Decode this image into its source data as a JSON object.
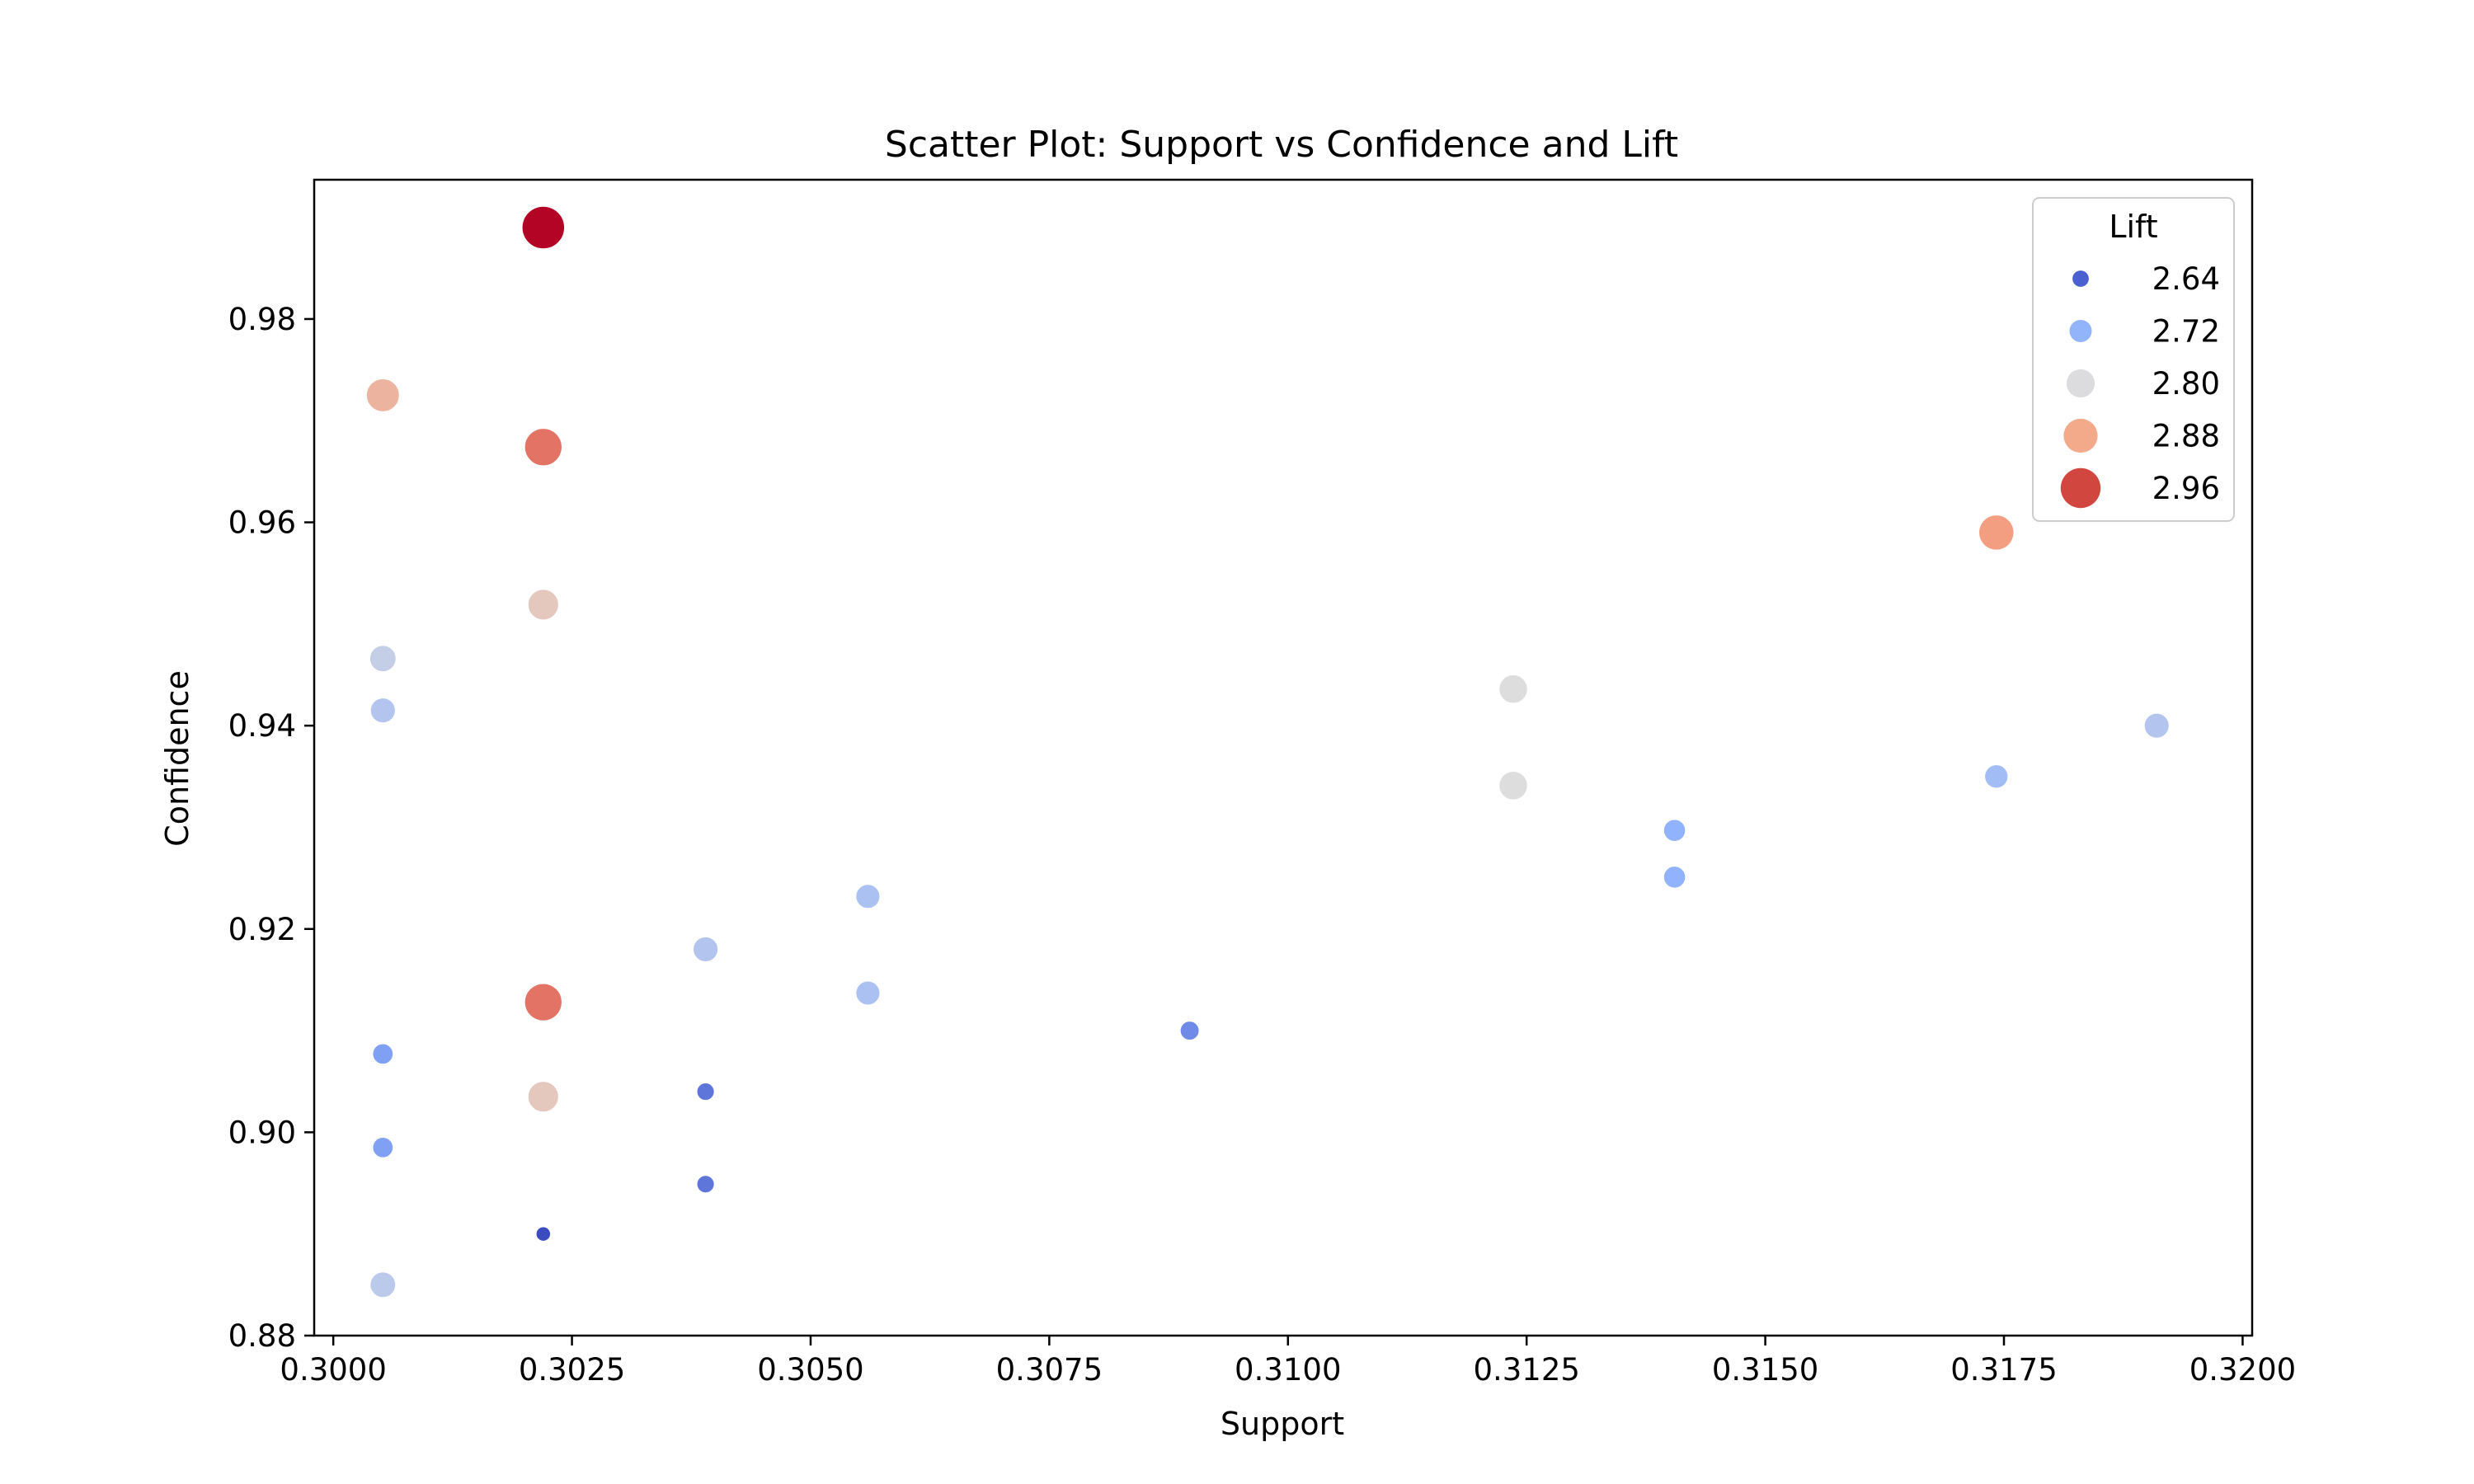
{
  "chart_data": {
    "type": "scatter",
    "title": "Scatter Plot: Support vs Confidence and Lift",
    "xlabel": "Support",
    "ylabel": "Confidence",
    "xlim": [
      0.2998,
      0.3201
    ],
    "ylim": [
      0.88,
      0.9937
    ],
    "x_ticks": [
      "0.3000",
      "0.3025",
      "0.3050",
      "0.3075",
      "0.3100",
      "0.3125",
      "0.3150",
      "0.3175",
      "0.3200"
    ],
    "y_ticks": [
      "0.88",
      "0.90",
      "0.92",
      "0.94",
      "0.96",
      "0.98"
    ],
    "grid": false,
    "hue_and_size": "Lift",
    "color_map": "coolwarm",
    "legend": {
      "title": "Lift",
      "position": "top-right",
      "entries": [
        {
          "label": "2.64",
          "lift": 2.64,
          "color": "#4a5fd0"
        },
        {
          "label": "2.72",
          "lift": 2.72,
          "color": "#92b4fb"
        },
        {
          "label": "2.80",
          "lift": 2.8,
          "color": "#dcdcde"
        },
        {
          "label": "2.88",
          "lift": 2.88,
          "color": "#f3aa8a"
        },
        {
          "label": "2.96",
          "lift": 2.96,
          "color": "#d1463f"
        }
      ]
    },
    "points": [
      {
        "support": 0.3022,
        "confidence": 0.989,
        "lift": 3.0
      },
      {
        "support": 0.30052,
        "confidence": 0.9725,
        "lift": 2.87
      },
      {
        "support": 0.3022,
        "confidence": 0.9674,
        "lift": 2.93
      },
      {
        "support": 0.3022,
        "confidence": 0.9519,
        "lift": 2.84
      },
      {
        "support": 0.30052,
        "confidence": 0.9466,
        "lift": 2.78
      },
      {
        "support": 0.30052,
        "confidence": 0.9415,
        "lift": 2.76
      },
      {
        "support": 0.3022,
        "confidence": 0.9128,
        "lift": 2.93
      },
      {
        "support": 0.3022,
        "confidence": 0.9035,
        "lift": 2.84
      },
      {
        "support": 0.30052,
        "confidence": 0.9077,
        "lift": 2.7
      },
      {
        "support": 0.30052,
        "confidence": 0.8985,
        "lift": 2.7
      },
      {
        "support": 0.30052,
        "confidence": 0.885,
        "lift": 2.77
      },
      {
        "support": 0.3022,
        "confidence": 0.89,
        "lift": 2.62
      },
      {
        "support": 0.3039,
        "confidence": 0.918,
        "lift": 2.76
      },
      {
        "support": 0.3039,
        "confidence": 0.904,
        "lift": 2.66
      },
      {
        "support": 0.3039,
        "confidence": 0.8949,
        "lift": 2.66
      },
      {
        "support": 0.3056,
        "confidence": 0.9232,
        "lift": 2.75
      },
      {
        "support": 0.3056,
        "confidence": 0.9137,
        "lift": 2.75
      },
      {
        "support": 0.30897,
        "confidence": 0.91,
        "lift": 2.68
      },
      {
        "support": 0.31236,
        "confidence": 0.9436,
        "lift": 2.81
      },
      {
        "support": 0.31236,
        "confidence": 0.9341,
        "lift": 2.81
      },
      {
        "support": 0.31405,
        "confidence": 0.9297,
        "lift": 2.72
      },
      {
        "support": 0.31405,
        "confidence": 0.9251,
        "lift": 2.72
      },
      {
        "support": 0.31742,
        "confidence": 0.959,
        "lift": 2.9
      },
      {
        "support": 0.31742,
        "confidence": 0.935,
        "lift": 2.74
      },
      {
        "support": 0.3191,
        "confidence": 0.94,
        "lift": 2.76
      }
    ]
  }
}
